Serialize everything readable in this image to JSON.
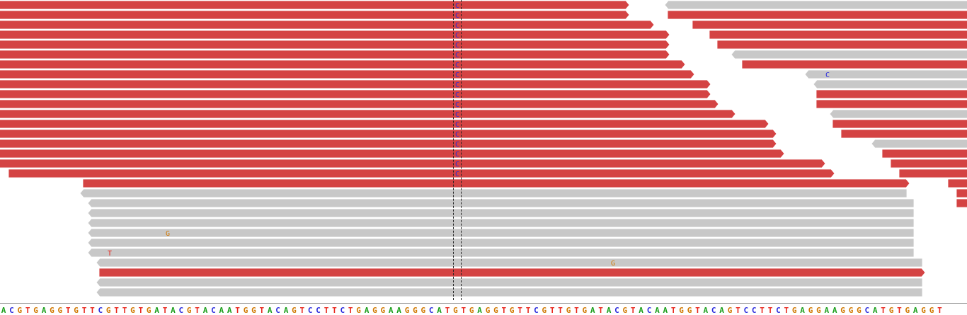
{
  "view": {
    "track": "alignment-reads",
    "colors": {
      "read_forward": "#d44343",
      "read_reverse": "#c8c8c8",
      "read_edge": "#ffffff",
      "base_A": "#1a9e1a",
      "base_C": "#2b2bdd",
      "base_G": "#d17800",
      "base_T": "#e8261c",
      "center_guide": "#222222"
    }
  },
  "reference": {
    "sequence": "ACGTGAGGTGTTCGTTGTGATACGTACAATGGTACAGTCCTTCTGAGGAAGGGCATGTGAGGTGTTCGTTGTGATACGTACAATGGTACAGTCCTTCTGAGGAAGGGCATGTGAGGT"
  },
  "mismatch_labels": {
    "C": "C",
    "G": "G",
    "T": "T"
  }
}
